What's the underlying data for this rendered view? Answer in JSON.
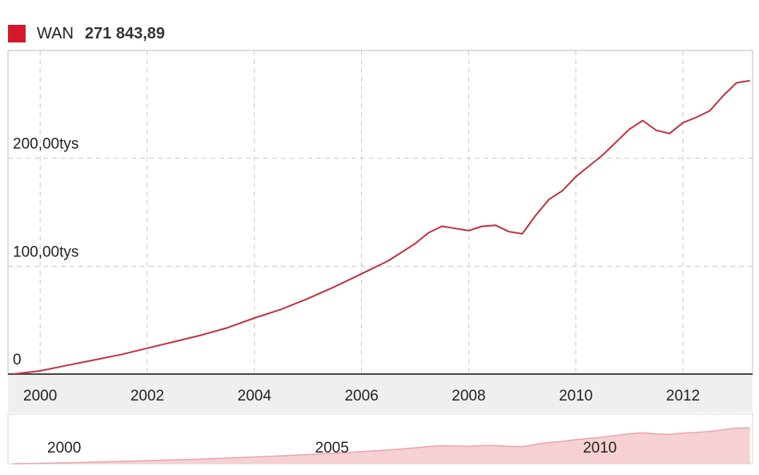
{
  "legend": {
    "series_name": "WAN",
    "current_value": "271 843,89",
    "color": "#d2182a"
  },
  "chart_data": {
    "type": "line",
    "series": [
      {
        "name": "WAN",
        "color": "#c0323c",
        "x": [
          1999.5,
          2000.0,
          2000.5,
          2001.0,
          2001.5,
          2002.0,
          2002.5,
          2003.0,
          2003.5,
          2004.0,
          2004.5,
          2005.0,
          2005.5,
          2006.0,
          2006.5,
          2007.0,
          2007.25,
          2007.5,
          2007.75,
          2008.0,
          2008.25,
          2008.5,
          2008.75,
          2009.0,
          2009.25,
          2009.5,
          2009.75,
          2010.0,
          2010.25,
          2010.5,
          2010.75,
          2011.0,
          2011.25,
          2011.5,
          2011.75,
          2012.0,
          2012.25,
          2012.5,
          2012.75,
          2013.0,
          2013.25
        ],
        "y": [
          0,
          3000,
          8000,
          13000,
          18000,
          24000,
          30000,
          36000,
          43000,
          52000,
          60000,
          70000,
          81000,
          93000,
          105000,
          121000,
          131000,
          137000,
          135000,
          133000,
          137000,
          138000,
          132000,
          130000,
          147000,
          162000,
          170000,
          183000,
          193000,
          203000,
          215000,
          227000,
          235000,
          226000,
          223000,
          233000,
          238000,
          244000,
          258000,
          270000,
          272000
        ]
      }
    ],
    "yticks": [
      "0",
      "100,00tys",
      "200,00tys"
    ],
    "ytick_values": [
      0,
      100000,
      200000
    ],
    "xticks": [
      "2000",
      "2002",
      "2004",
      "2006",
      "2008",
      "2010",
      "2012"
    ],
    "xtick_values": [
      2000,
      2002,
      2004,
      2006,
      2008,
      2010,
      2012
    ],
    "xlim": [
      1999.4,
      2013.3
    ],
    "ylim": [
      0,
      300000
    ],
    "grid": true
  },
  "navigator": {
    "xticks": [
      "2000",
      "2005",
      "2010"
    ],
    "xtick_values": [
      2000,
      2005,
      2010
    ],
    "fill_color": "#f6d0d3",
    "line_color": "#e8a6ac"
  }
}
